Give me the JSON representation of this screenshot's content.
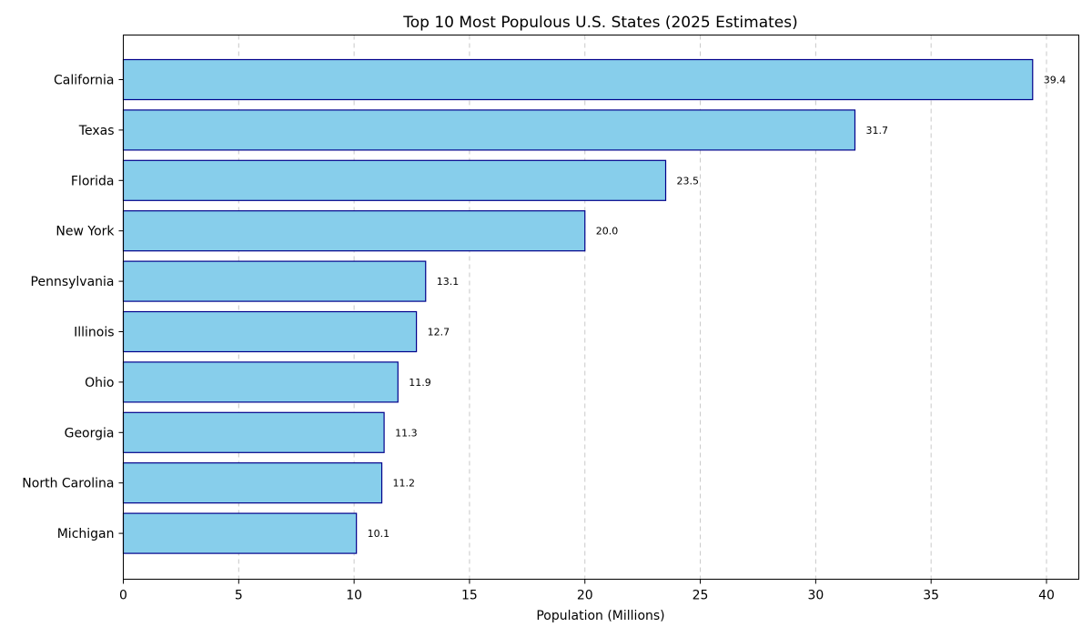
{
  "chart_data": {
    "type": "bar",
    "orientation": "horizontal",
    "title": "Top 10 Most Populous U.S. States (2025 Estimates)",
    "xlabel": "Population (Millions)",
    "ylabel": "",
    "xlim": [
      0,
      41.4
    ],
    "xticks": [
      0,
      5,
      10,
      15,
      20,
      25,
      30,
      35,
      40
    ],
    "grid": "x-dashed",
    "categories": [
      "California",
      "Texas",
      "Florida",
      "New York",
      "Pennsylvania",
      "Illinois",
      "Ohio",
      "Georgia",
      "North Carolina",
      "Michigan"
    ],
    "values": [
      39.4,
      31.7,
      23.5,
      20.0,
      13.1,
      12.7,
      11.9,
      11.3,
      11.2,
      10.1
    ],
    "value_labels": [
      "39.4",
      "31.7",
      "23.5",
      "20.0",
      "13.1",
      "12.7",
      "11.9",
      "11.3",
      "11.2",
      "10.1"
    ],
    "colors": {
      "bar_fill": "#87ceeb",
      "bar_edge": "#00008b"
    }
  }
}
